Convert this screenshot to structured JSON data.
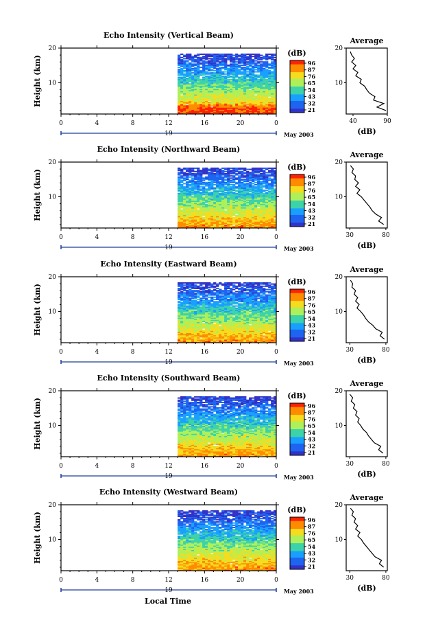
{
  "figure": {
    "bottom_xlabel": "Local Time",
    "date_label": "May 2003",
    "day_label": "19"
  },
  "colorbar": {
    "label": "(dB)",
    "ticks": [
      "96",
      "87",
      "76",
      "65",
      "54",
      "43",
      "32",
      "21"
    ],
    "colors": [
      "#ff2200",
      "#ff8c00",
      "#f5dc1e",
      "#aff05a",
      "#3cd2aa",
      "#19a0ff",
      "#1e64f0",
      "#3232c8"
    ]
  },
  "chart_data": [
    {
      "type": "heatmap",
      "title": "Echo Intensity (Vertical Beam)",
      "ylabel": "Height (km)",
      "x_ticks": [
        "0",
        "4",
        "8",
        "12",
        "16",
        "20",
        "0"
      ],
      "y_ticks": [
        "20",
        "10"
      ],
      "xlim": [
        0,
        24
      ],
      "ylim": [
        1,
        20
      ],
      "data_start_hour": 13,
      "colorbar_range_dB": [
        21,
        96
      ],
      "profile": {
        "title": "Average",
        "xlabel": "(dB)",
        "x_ticks": [
          "40",
          "90"
        ],
        "xlim": [
          30,
          90
        ],
        "height_km": [
          2,
          3,
          4,
          5,
          6,
          7,
          8,
          9,
          10,
          11,
          12,
          13,
          14,
          15,
          16,
          17,
          18,
          19
        ],
        "mean_dB": [
          88,
          75,
          85,
          70,
          72,
          64,
          60,
          57,
          50,
          52,
          44,
          47,
          40,
          44,
          38,
          42,
          38,
          36
        ]
      }
    },
    {
      "type": "heatmap",
      "title": "Echo Intensity (Northward Beam)",
      "ylabel": "Height (km)",
      "x_ticks": [
        "0",
        "4",
        "8",
        "12",
        "16",
        "20",
        "0"
      ],
      "y_ticks": [
        "20",
        "10"
      ],
      "xlim": [
        0,
        24
      ],
      "ylim": [
        1,
        20
      ],
      "data_start_hour": 13,
      "colorbar_range_dB": [
        21,
        96
      ],
      "profile": {
        "title": "Average",
        "xlabel": "(dB)",
        "x_ticks": [
          "30",
          "80"
        ],
        "xlim": [
          25,
          82
        ],
        "height_km": [
          2,
          3,
          4,
          5,
          6,
          7,
          8,
          9,
          10,
          11,
          12,
          13,
          14,
          15,
          16,
          17,
          18,
          19
        ],
        "mean_dB": [
          77,
          70,
          74,
          66,
          61,
          58,
          54,
          50,
          46,
          40,
          44,
          38,
          42,
          37,
          38,
          33,
          35,
          31
        ]
      }
    },
    {
      "type": "heatmap",
      "title": "Echo Intensity (Eastward Beam)",
      "ylabel": "Height (km)",
      "x_ticks": [
        "0",
        "4",
        "8",
        "12",
        "16",
        "20",
        "0"
      ],
      "y_ticks": [
        "20",
        "10"
      ],
      "xlim": [
        0,
        24
      ],
      "ylim": [
        1,
        20
      ],
      "data_start_hour": 13,
      "colorbar_range_dB": [
        21,
        96
      ],
      "profile": {
        "title": "Average",
        "xlabel": "(dB)",
        "x_ticks": [
          "30",
          "80"
        ],
        "xlim": [
          25,
          82
        ],
        "height_km": [
          2,
          3,
          4,
          5,
          6,
          7,
          8,
          9,
          10,
          11,
          12,
          13,
          14,
          15,
          16,
          17,
          18,
          19
        ],
        "mean_dB": [
          78,
          72,
          75,
          66,
          62,
          56,
          52,
          49,
          45,
          40,
          43,
          38,
          41,
          36,
          38,
          33,
          34,
          31
        ]
      }
    },
    {
      "type": "heatmap",
      "title": "Echo Intensity (Southward Beam)",
      "ylabel": "Height (km)",
      "x_ticks": [
        "0",
        "4",
        "8",
        "12",
        "16",
        "20",
        "0"
      ],
      "y_ticks": [
        "20",
        "10"
      ],
      "xlim": [
        0,
        24
      ],
      "ylim": [
        1,
        20
      ],
      "data_start_hour": 13,
      "colorbar_range_dB": [
        21,
        96
      ],
      "profile": {
        "title": "Average",
        "xlabel": "(dB)",
        "x_ticks": [
          "30",
          "80"
        ],
        "xlim": [
          25,
          82
        ],
        "height_km": [
          2,
          3,
          4,
          5,
          6,
          7,
          8,
          9,
          10,
          11,
          12,
          13,
          14,
          15,
          16,
          17,
          18,
          19
        ],
        "mean_dB": [
          76,
          70,
          73,
          64,
          60,
          56,
          53,
          48,
          45,
          41,
          43,
          38,
          40,
          35,
          37,
          32,
          34,
          30
        ]
      }
    },
    {
      "type": "heatmap",
      "title": "Echo Intensity (Westward Beam)",
      "ylabel": "Height (km)",
      "x_ticks": [
        "0",
        "4",
        "8",
        "12",
        "16",
        "20",
        "0"
      ],
      "y_ticks": [
        "20",
        "10"
      ],
      "xlim": [
        0,
        24
      ],
      "ylim": [
        1,
        20
      ],
      "data_start_hour": 13,
      "colorbar_range_dB": [
        21,
        96
      ],
      "profile": {
        "title": "Average",
        "xlabel": "(dB)",
        "x_ticks": [
          "30",
          "80"
        ],
        "xlim": [
          25,
          82
        ],
        "height_km": [
          2,
          3,
          4,
          5,
          6,
          7,
          8,
          9,
          10,
          11,
          12,
          13,
          14,
          15,
          16,
          17,
          18,
          19
        ],
        "mean_dB": [
          77,
          71,
          74,
          65,
          61,
          57,
          53,
          49,
          46,
          41,
          44,
          38,
          41,
          36,
          38,
          33,
          35,
          31
        ]
      }
    }
  ]
}
